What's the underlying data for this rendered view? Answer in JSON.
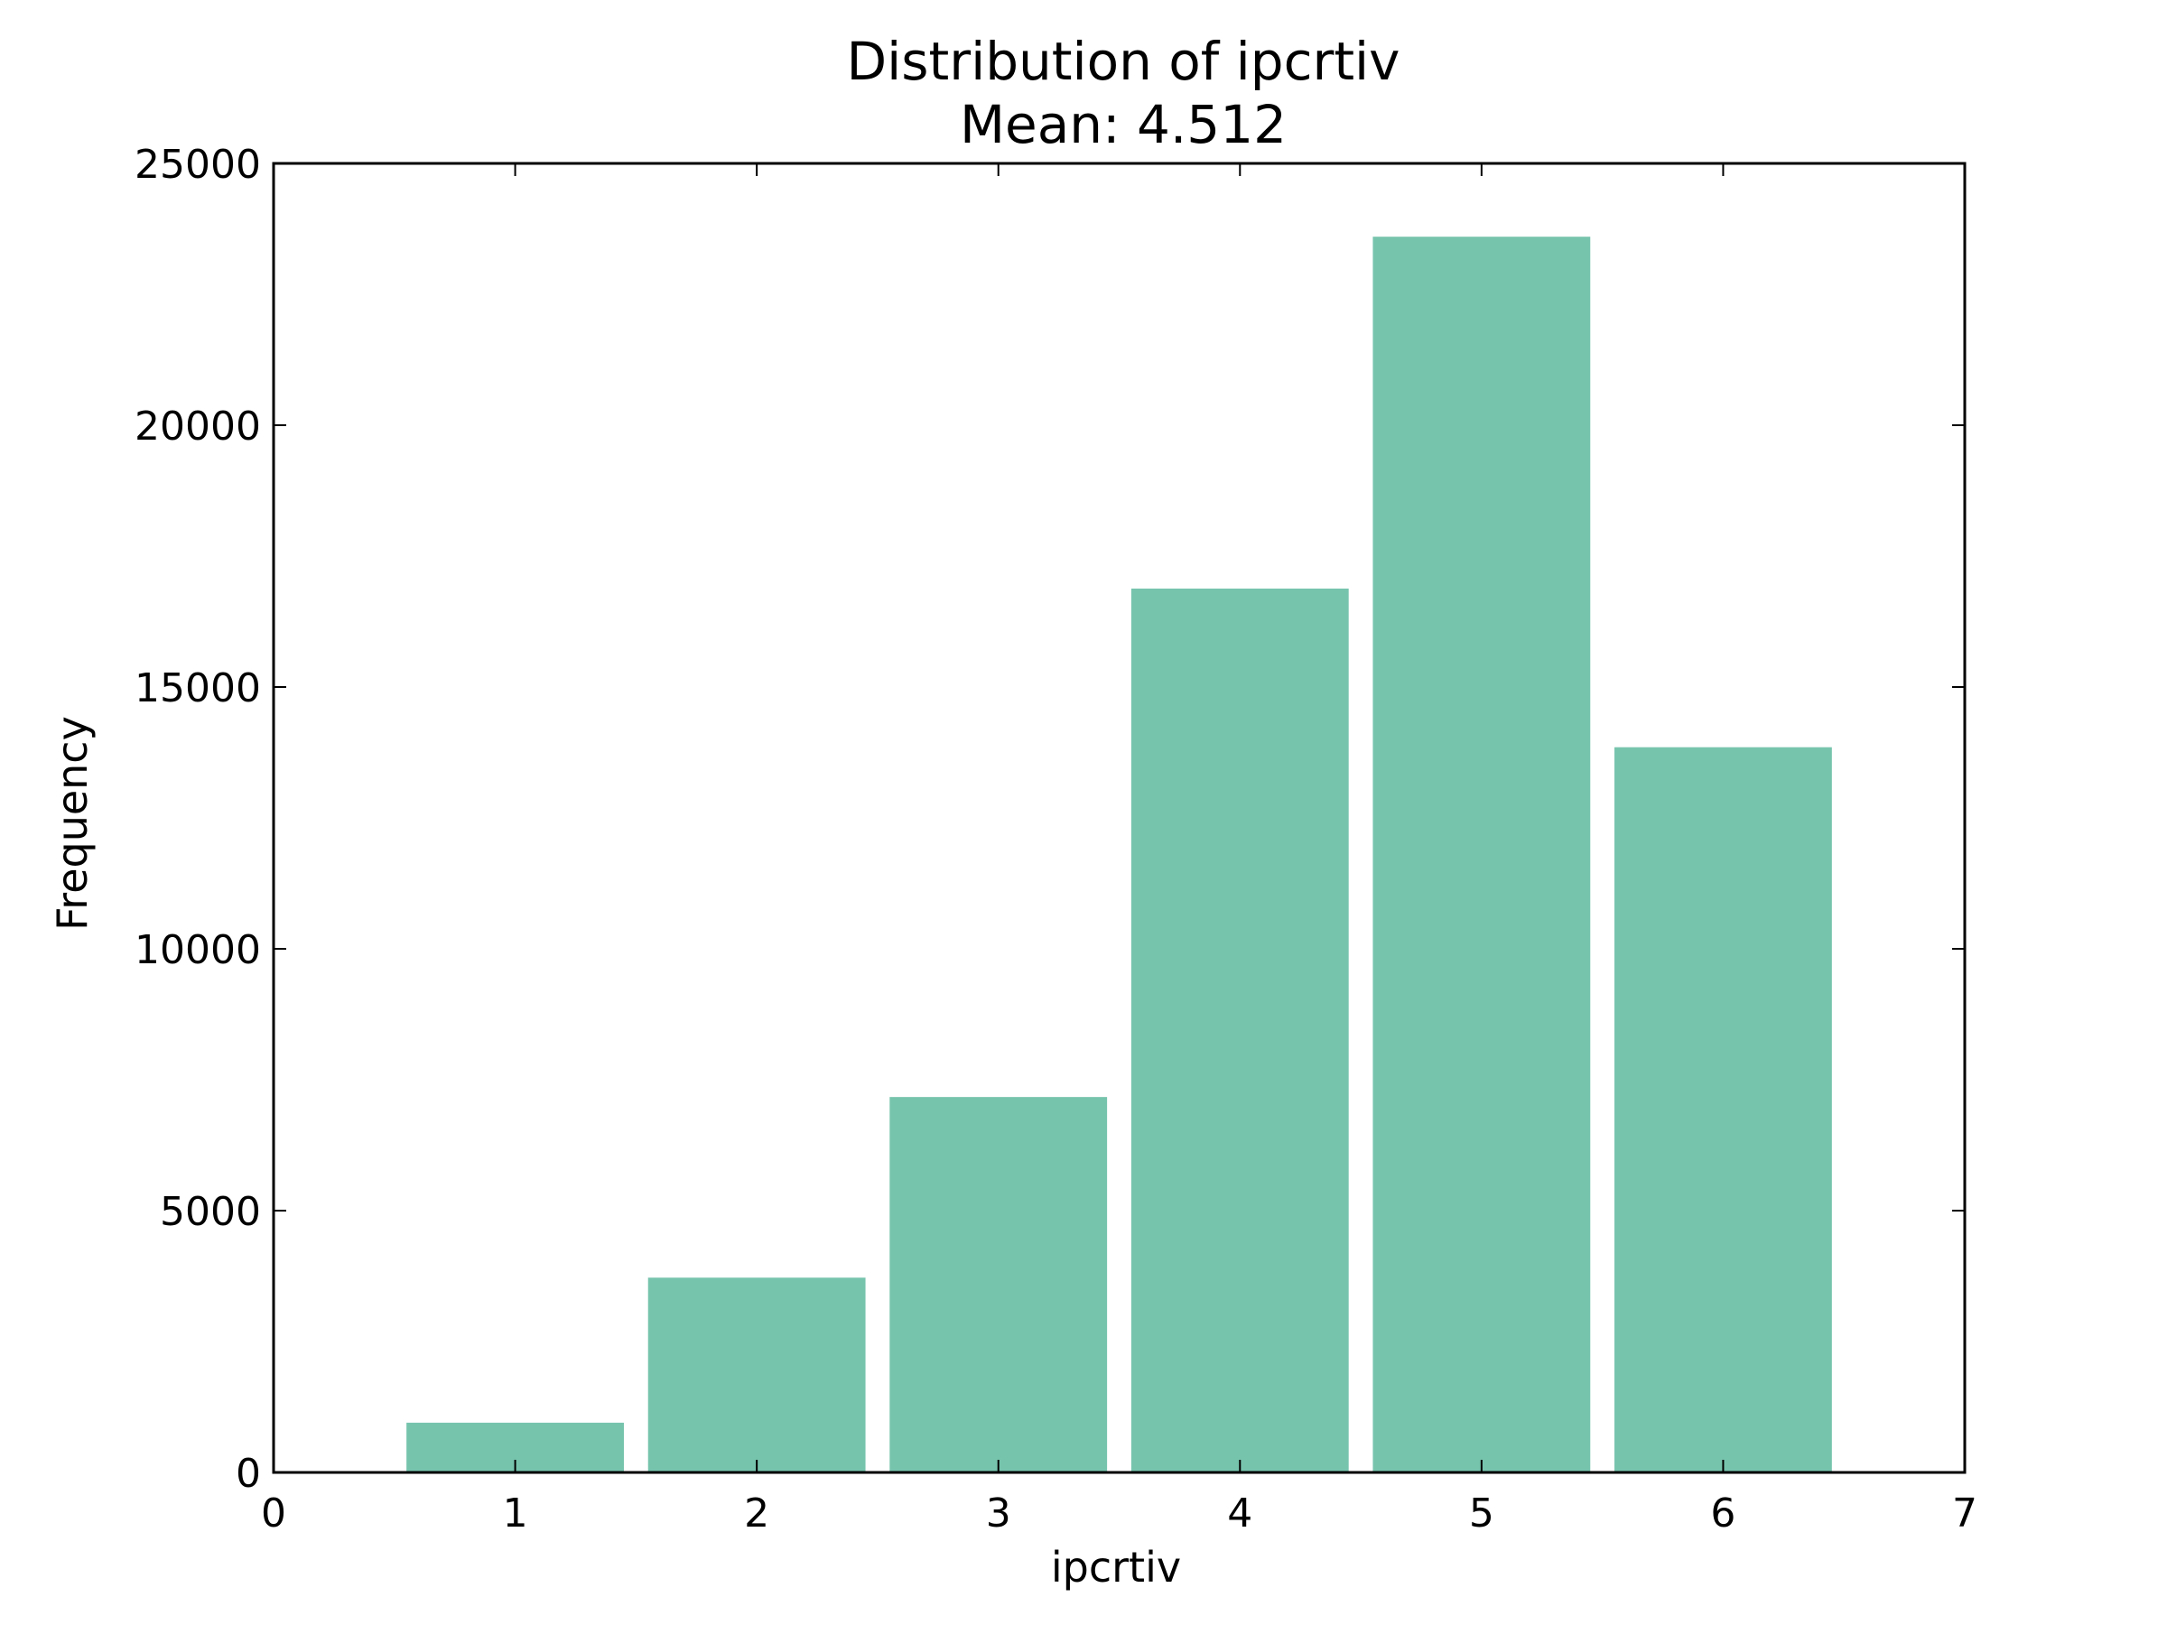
{
  "chart_data": {
    "type": "bar",
    "title": "Distribution of ipcrtiv",
    "subtitle": "Mean: 4.512",
    "xlabel": "ipcrtiv",
    "ylabel": "Frequency",
    "x": [
      1,
      2,
      3,
      4,
      5,
      6
    ],
    "values": [
      950,
      3720,
      7170,
      16880,
      23600,
      13850
    ],
    "bar_width": 0.9,
    "xlim": [
      0,
      7
    ],
    "ylim": [
      0,
      25000
    ],
    "xticks": [
      0,
      1,
      2,
      3,
      4,
      5,
      6,
      7
    ],
    "yticks": [
      0,
      5000,
      10000,
      15000,
      20000,
      25000
    ],
    "xtick_labels": [
      "0",
      "1",
      "2",
      "3",
      "4",
      "5",
      "6",
      "7"
    ],
    "ytick_labels": [
      "0",
      "5000",
      "10000",
      "15000",
      "20000",
      "25000"
    ],
    "bar_color": "#77c4ad",
    "grid": false,
    "legend": "none"
  }
}
